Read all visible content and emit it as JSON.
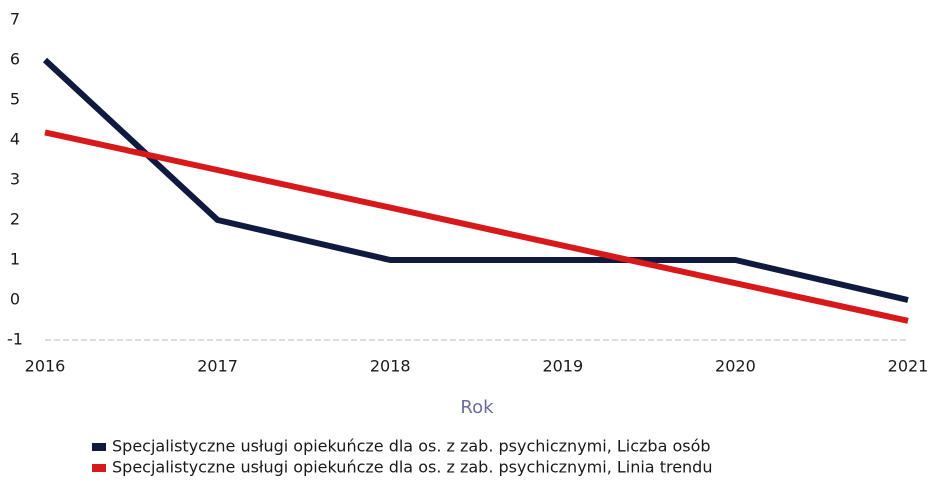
{
  "chart_data": {
    "type": "line",
    "x_label": "Rok",
    "categories": [
      "2016",
      "2017",
      "2018",
      "2019",
      "2020",
      "2021"
    ],
    "series": [
      {
        "name": "Specjalistyczne usługi opiekuńcze dla os. z zab. psychicznymi, Liczba osób",
        "color": "#101a3e",
        "values": [
          6,
          2,
          1,
          1,
          1,
          0
        ]
      },
      {
        "name": "Specjalistyczne usługi opiekuńcze dla os. z zab. psychicznymi, Linia trendu",
        "color": "#d7191c",
        "values": [
          4.19,
          3.25,
          2.31,
          1.36,
          0.42,
          -0.52
        ]
      }
    ],
    "ylim": [
      -1,
      7
    ],
    "yticks": [
      -1,
      0,
      1,
      2,
      3,
      4,
      5,
      6,
      7
    ],
    "grid": false,
    "legend": "bottom"
  }
}
